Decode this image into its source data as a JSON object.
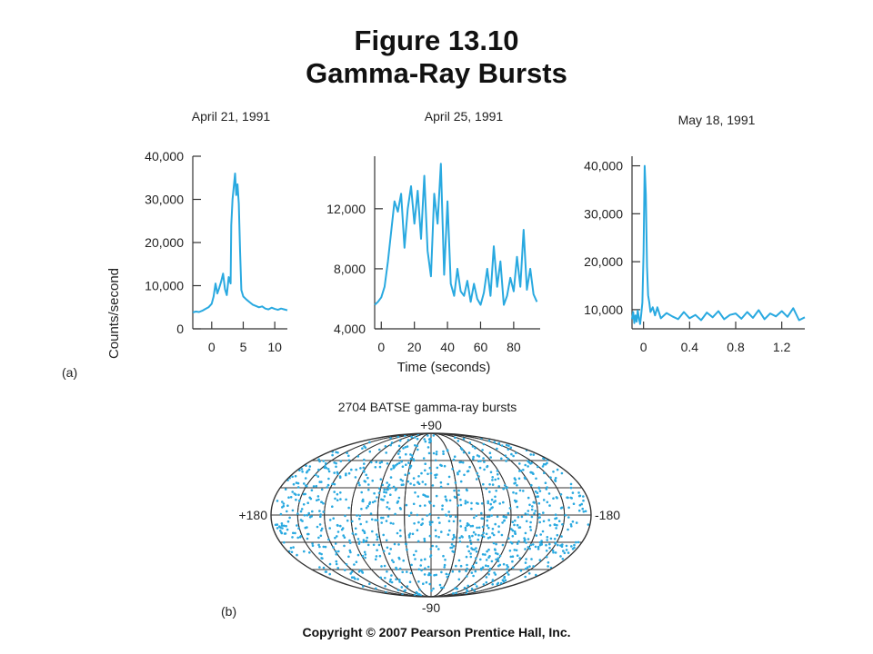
{
  "figure_title": "Figure 13.10",
  "figure_subtitle": "Gamma-Ray Bursts",
  "copyright": "Copyright © 2007 Pearson Prentice Hall, Inc.",
  "part_a_label": "(a)",
  "part_b_label": "(b)",
  "colors": {
    "data": "#29a9e0",
    "axis": "#333333",
    "grid": "#333333"
  },
  "chart_data": [
    {
      "type": "line",
      "title": "April 21, 1991",
      "ylabel": "Counts/second",
      "xlabel": "",
      "xlim": [
        -3,
        12
      ],
      "ylim": [
        0,
        40000
      ],
      "xticks": [
        0,
        5,
        10
      ],
      "yticks": [
        0,
        10000,
        20000,
        30000,
        40000
      ],
      "xtick_labels": [
        "0",
        "5",
        "10"
      ],
      "ytick_labels": [
        "0",
        "10,000",
        "20,000",
        "30,000",
        "40,000"
      ],
      "series": [
        {
          "x": [
            -3,
            -2.5,
            -2,
            -1.5,
            -1,
            -0.5,
            0,
            0.3,
            0.6,
            0.9,
            1.2,
            1.5,
            1.8,
            2.1,
            2.4,
            2.7,
            3,
            3.1,
            3.3,
            3.5,
            3.7,
            3.9,
            4.1,
            4.3,
            4.5,
            4.7,
            5,
            5.5,
            6,
            6.5,
            7,
            7.5,
            8,
            8.5,
            9,
            9.5,
            10,
            10.5,
            11,
            11.5,
            12
          ],
          "y": [
            3800,
            4000,
            3900,
            4200,
            4600,
            5000,
            5800,
            7500,
            10500,
            8200,
            9500,
            11000,
            12800,
            9200,
            7800,
            12000,
            10500,
            24000,
            30000,
            33000,
            36000,
            31000,
            33500,
            29000,
            18000,
            9000,
            7500,
            6800,
            6200,
            5600,
            5300,
            5000,
            5200,
            4700,
            4500,
            4900,
            4600,
            4400,
            4700,
            4500,
            4300
          ]
        }
      ]
    },
    {
      "type": "line",
      "title": "April 25, 1991",
      "xlabel": "Time (seconds)",
      "ylabel": "",
      "xlim": [
        -4,
        96
      ],
      "ylim": [
        4000,
        15500
      ],
      "xticks": [
        0,
        20,
        40,
        60,
        80
      ],
      "yticks": [
        4000,
        8000,
        12000
      ],
      "xtick_labels": [
        "0",
        "20",
        "40",
        "60",
        "80"
      ],
      "ytick_labels": [
        "4,000",
        "8,000",
        "12,000"
      ],
      "series": [
        {
          "x": [
            -4,
            -2,
            0,
            2,
            4,
            6,
            8,
            10,
            12,
            14,
            16,
            18,
            20,
            22,
            24,
            26,
            28,
            30,
            32,
            34,
            36,
            38,
            40,
            42,
            44,
            46,
            48,
            50,
            52,
            54,
            56,
            58,
            60,
            62,
            64,
            66,
            68,
            70,
            72,
            74,
            76,
            78,
            80,
            82,
            84,
            86,
            88,
            90,
            92,
            94
          ],
          "y": [
            5600,
            5800,
            6100,
            6800,
            8500,
            10500,
            12500,
            11800,
            13000,
            9400,
            12000,
            13500,
            11000,
            13200,
            10000,
            14200,
            9200,
            7500,
            13000,
            11000,
            15000,
            7600,
            12500,
            7000,
            6200,
            8000,
            6500,
            6200,
            7200,
            5800,
            7000,
            6000,
            5600,
            6400,
            8000,
            6200,
            9500,
            6800,
            8500,
            5600,
            6200,
            7400,
            6500,
            8800,
            6800,
            10600,
            6600,
            8000,
            6300,
            5800
          ]
        }
      ]
    },
    {
      "type": "line",
      "title": "May 18, 1991",
      "xlabel": "",
      "ylabel": "",
      "xlim": [
        -0.1,
        1.4
      ],
      "ylim": [
        6000,
        42000
      ],
      "xticks": [
        0,
        0.4,
        0.8,
        1.2
      ],
      "yticks": [
        10000,
        20000,
        30000,
        40000
      ],
      "xtick_labels": [
        "0",
        "0.4",
        "0.8",
        "1.2"
      ],
      "ytick_labels": [
        "10,000",
        "20,000",
        "30,000",
        "40,000"
      ],
      "series": [
        {
          "x": [
            -0.1,
            -0.09,
            -0.08,
            -0.07,
            -0.06,
            -0.05,
            -0.04,
            -0.03,
            -0.02,
            -0.01,
            0,
            0.01,
            0.02,
            0.03,
            0.04,
            0.05,
            0.06,
            0.08,
            0.1,
            0.12,
            0.15,
            0.2,
            0.25,
            0.3,
            0.35,
            0.4,
            0.45,
            0.5,
            0.55,
            0.6,
            0.65,
            0.7,
            0.75,
            0.8,
            0.85,
            0.9,
            0.95,
            1.0,
            1.05,
            1.1,
            1.15,
            1.2,
            1.25,
            1.3,
            1.35,
            1.4
          ],
          "y": [
            8000,
            9500,
            7200,
            8800,
            7500,
            9800,
            8200,
            7000,
            9000,
            11500,
            22000,
            40000,
            34000,
            19000,
            13000,
            11500,
            9500,
            10500,
            8800,
            10500,
            8200,
            9300,
            8600,
            8000,
            9500,
            8200,
            8900,
            7800,
            9400,
            8400,
            9700,
            8000,
            8900,
            9200,
            8100,
            9500,
            8300,
            9900,
            8000,
            9200,
            8600,
            9700,
            8500,
            10300,
            7800,
            8400
          ]
        }
      ]
    },
    {
      "type": "scatter",
      "title": "2704 BATSE gamma-ray bursts",
      "projection": "aitoff",
      "grid": true,
      "lat_labels": [
        "+90",
        "-90"
      ],
      "lon_labels": [
        "+180",
        "-180"
      ],
      "xlim": [
        -180,
        180
      ],
      "ylim": [
        -90,
        90
      ],
      "burst_count": 2704,
      "points_drawn": 1100,
      "distribution": "isotropic",
      "seed": 7
    }
  ]
}
